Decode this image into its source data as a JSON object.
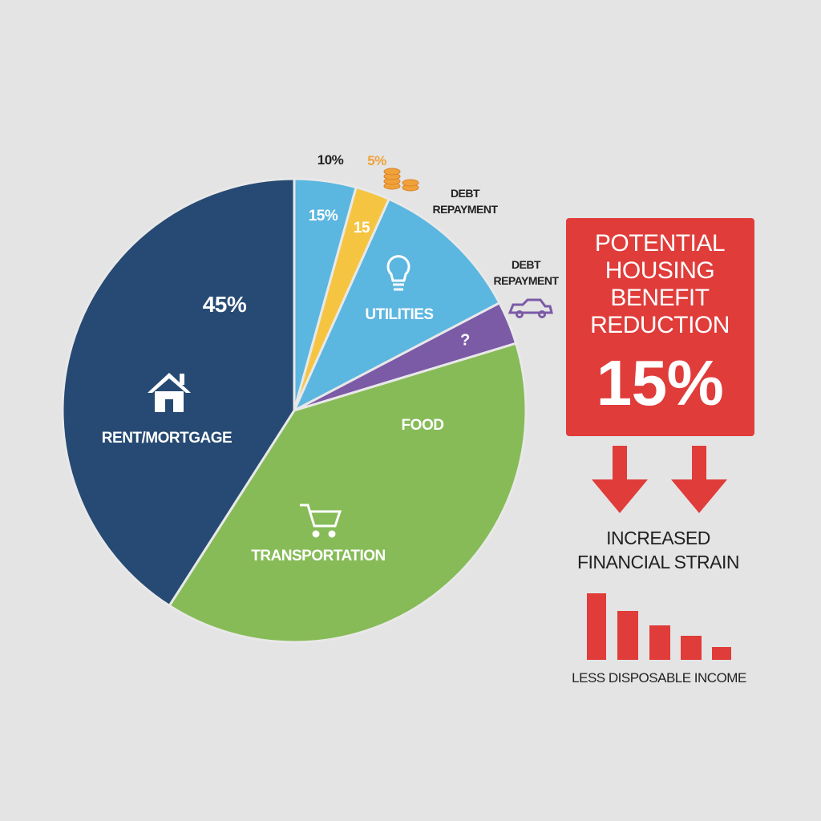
{
  "chart_data": {
    "type": "pie",
    "categories": [
      null,
      null,
      "UTILITIES",
      "?",
      "FOOD",
      "RENT/MORTGAGE"
    ],
    "values": [
      4.3,
      2.4,
      10.6,
      3,
      38.7,
      40.9
    ],
    "colors": [
      "#5bb6e0",
      "#f5c542",
      "#5bb6e0",
      "#7b5aa6",
      "#86bb57",
      "#264a73"
    ],
    "annotations": [
      "10%",
      "5%",
      "DEBT REPAYMENT",
      "15%",
      "15",
      "DEBT REPAYMENT",
      "45%",
      "TRANSPORTATION"
    ]
  },
  "panel": {
    "box_title": "POTENTIAL HOUSING BENEFIT REDUCTION",
    "box_value": "15%",
    "caption": "INCREASED FINANCIAL STRAIN",
    "footer": "LESS DISPOSABLE INCOME"
  }
}
